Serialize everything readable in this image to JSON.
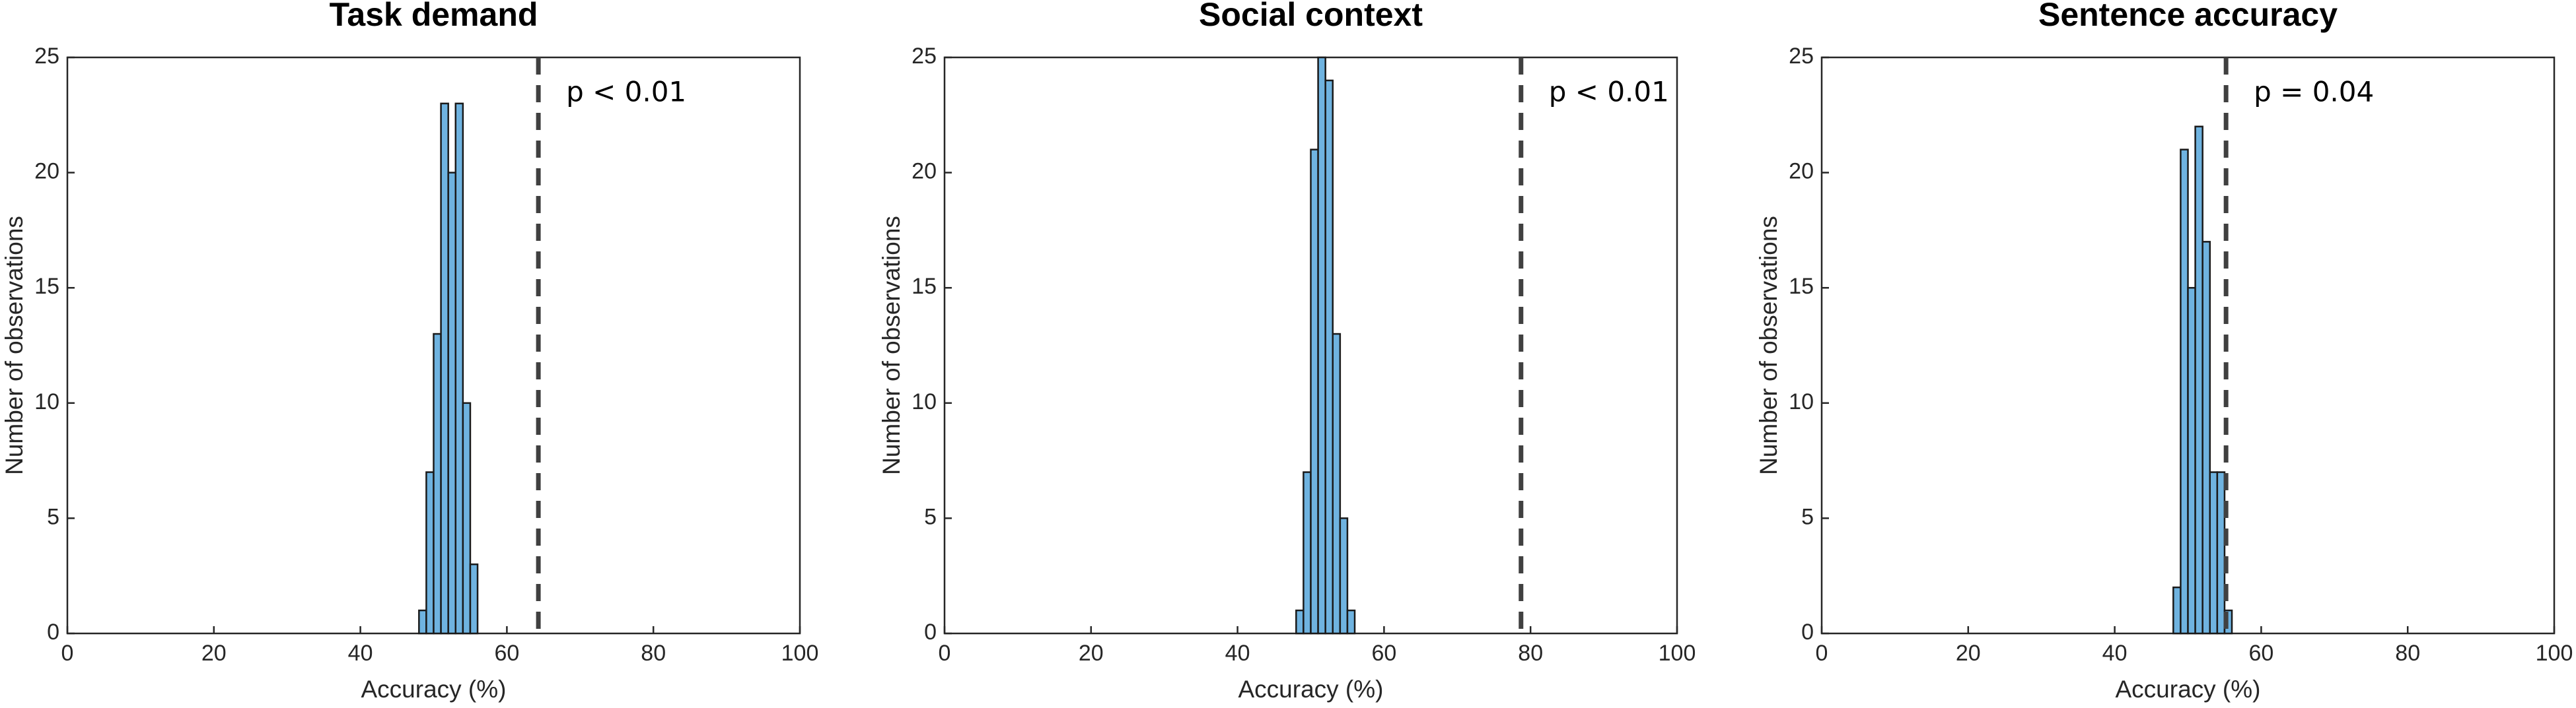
{
  "chart_data": [
    {
      "type": "histogram",
      "title": "Task demand",
      "xlabel": "Accuracy (%)",
      "ylabel": "Number of observations",
      "bins": [
        48,
        49,
        50,
        51,
        52,
        53,
        54,
        55,
        56
      ],
      "values": [
        1,
        7,
        13,
        23,
        20,
        23,
        10,
        3
      ],
      "color": "#6fb3e0",
      "xlim": [
        0,
        100
      ],
      "ylim": [
        0,
        25
      ],
      "xticks": [
        0,
        20,
        40,
        60,
        80,
        100
      ],
      "yticks": [
        0,
        5,
        10,
        15,
        20,
        25
      ],
      "threshold": 64.3,
      "annotation": "p < 0.01"
    },
    {
      "type": "histogram",
      "title": "Social context",
      "xlabel": "Accuracy (%)",
      "ylabel": "Number of observations",
      "bins": [
        48,
        49,
        50,
        51,
        52,
        53,
        54,
        55,
        56
      ],
      "values": [
        1,
        7,
        21,
        25,
        24,
        13,
        5,
        1
      ],
      "color": "#6fb3e0",
      "xlim": [
        0,
        100
      ],
      "ylim": [
        0,
        25
      ],
      "xticks": [
        0,
        20,
        40,
        60,
        80,
        100
      ],
      "yticks": [
        0,
        5,
        10,
        15,
        20,
        25
      ],
      "threshold": 78.7,
      "annotation": "p < 0.01"
    },
    {
      "type": "histogram",
      "title": "Sentence accuracy",
      "xlabel": "Accuracy (%)",
      "ylabel": "Number of observations",
      "bins": [
        48,
        49,
        50,
        51,
        52,
        53,
        54,
        55,
        56
      ],
      "values": [
        2,
        21,
        15,
        22,
        17,
        7,
        7,
        1
      ],
      "color": "#6fb3e0",
      "xlim": [
        0,
        100
      ],
      "ylim": [
        0,
        25
      ],
      "xticks": [
        0,
        20,
        40,
        60,
        80,
        100
      ],
      "yticks": [
        0,
        5,
        10,
        15,
        20,
        25
      ],
      "threshold": 55.2,
      "annotation": "p = 0.04"
    }
  ]
}
